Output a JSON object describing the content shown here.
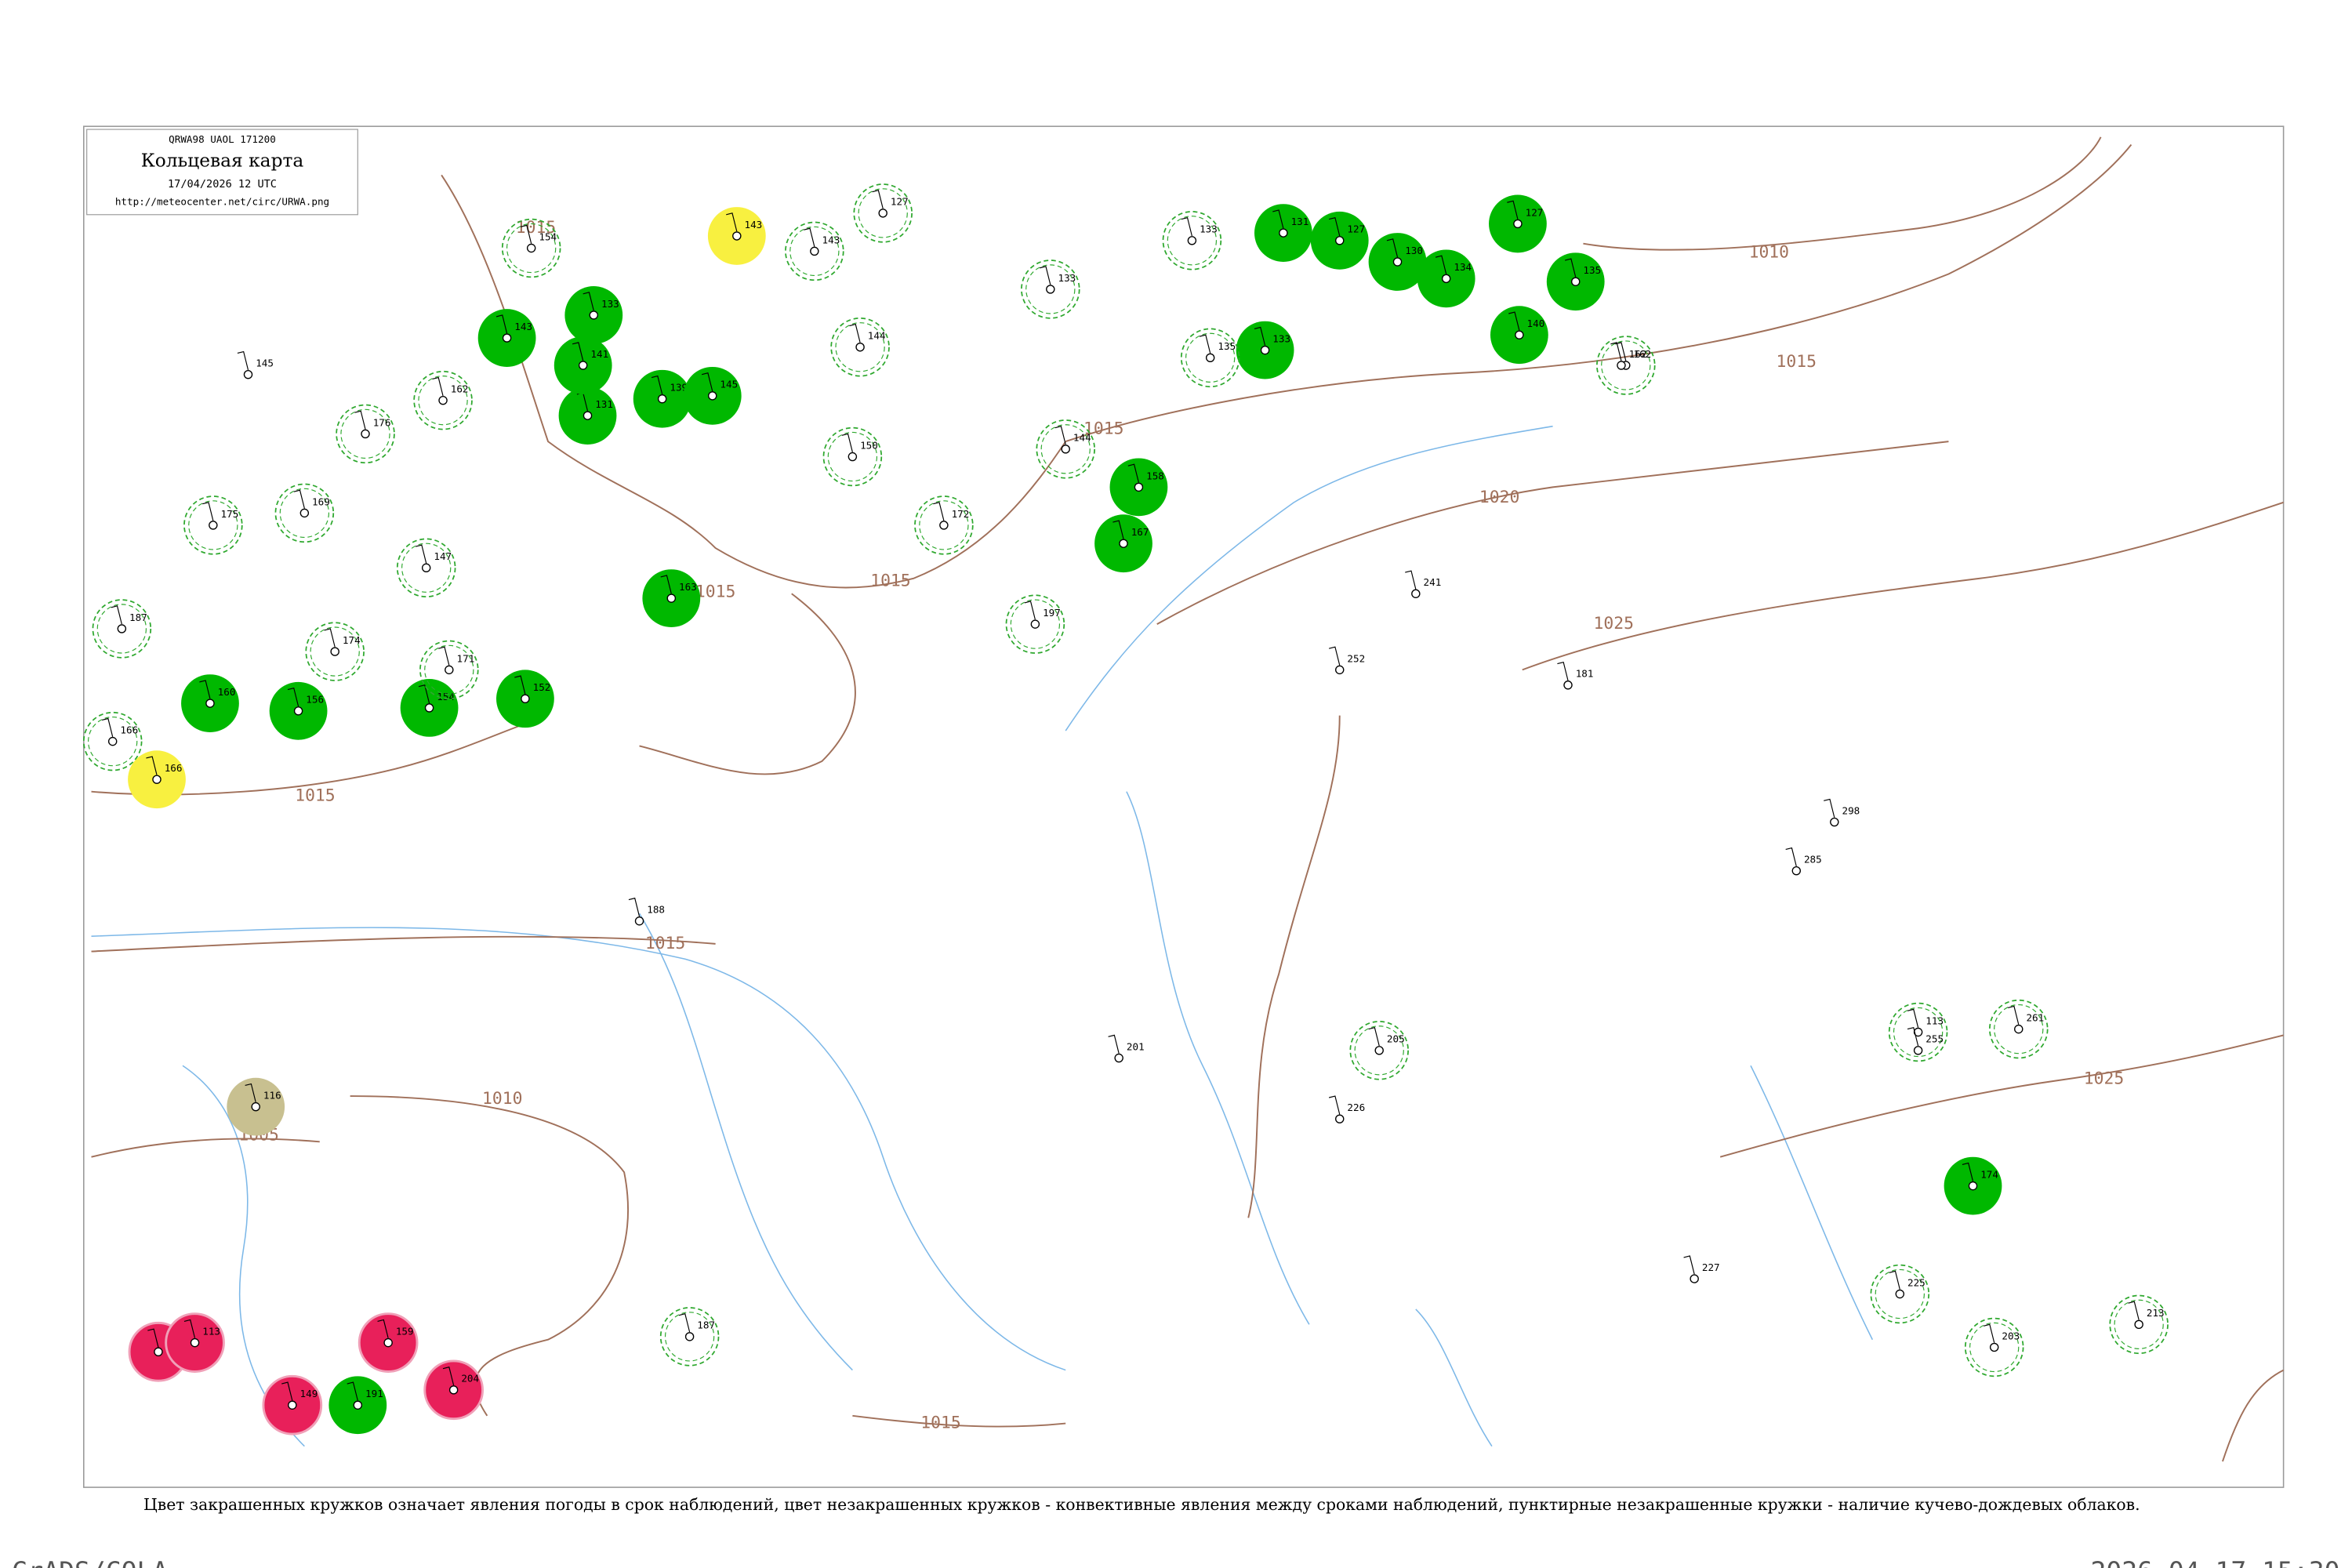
{
  "header": {
    "code": "QRWA98 UAOL 171200",
    "title": "Кольцевая карта",
    "date": "17/04/2026 12 UTC",
    "url": "http://meteocenter.net/circ/URWA.png"
  },
  "isobar_labels": [
    "1015",
    "1010",
    "1015",
    "1020",
    "1025",
    "1015",
    "1015",
    "1015",
    "1015",
    "1010",
    "1005",
    "1025",
    "1015",
    "1015"
  ],
  "stations": [
    {
      "pressure": 143,
      "color": "#00b800",
      "style": "filled"
    },
    {
      "pressure": 133,
      "color": "#00b800",
      "style": "filled"
    },
    {
      "pressure": 131,
      "color": "#00b800",
      "style": "filled"
    },
    {
      "pressure": 141,
      "color": "#00b800",
      "style": "filled"
    },
    {
      "pressure": 139,
      "color": "#00b800",
      "style": "filled"
    },
    {
      "pressure": 145,
      "color": "#00b800",
      "style": "filled"
    },
    {
      "pressure": 163,
      "color": "#00b800",
      "style": "filled"
    },
    {
      "pressure": 152,
      "color": "#00b800",
      "style": "filled"
    },
    {
      "pressure": 154,
      "color": "#00b800",
      "style": "filled"
    },
    {
      "pressure": 156,
      "color": "#00b800",
      "style": "filled"
    },
    {
      "pressure": 160,
      "color": "#00b800",
      "style": "filled"
    },
    {
      "pressure": 131,
      "color": "#00b800",
      "style": "filled"
    },
    {
      "pressure": 127,
      "color": "#00b800",
      "style": "filled"
    },
    {
      "pressure": 130,
      "color": "#00b800",
      "style": "filled"
    },
    {
      "pressure": 134,
      "color": "#00b800",
      "style": "filled"
    },
    {
      "pressure": 127,
      "color": "#00b800",
      "style": "filled"
    },
    {
      "pressure": 140,
      "color": "#00b800",
      "style": "filled"
    },
    {
      "pressure": 135,
      "color": "#00b800",
      "style": "filled"
    },
    {
      "pressure": 133,
      "color": "#00b800",
      "style": "filled"
    },
    {
      "pressure": 158,
      "color": "#00b800",
      "style": "filled"
    },
    {
      "pressure": 167,
      "color": "#00b800",
      "style": "filled"
    },
    {
      "pressure": 174,
      "color": "#00b800",
      "style": "filled"
    },
    {
      "pressure": 191,
      "color": "#00b800",
      "style": "filled"
    },
    {
      "pressure": 135,
      "color": "#e8205a",
      "style": "filled"
    },
    {
      "pressure": 113,
      "color": "#e8205a",
      "style": "filled"
    },
    {
      "pressure": 149,
      "color": "#e8205a",
      "style": "filled"
    },
    {
      "pressure": 159,
      "color": "#e8205a",
      "style": "filled"
    },
    {
      "pressure": 204,
      "color": "#e8205a",
      "style": "filled"
    },
    {
      "pressure": 143,
      "color": "#f8f040",
      "style": "filled"
    },
    {
      "pressure": 166,
      "color": "#f8f040",
      "style": "filled"
    },
    {
      "pressure": 116,
      "color": "#c8c090",
      "style": "filled"
    },
    {
      "pressure": 154,
      "color": "#2ea82e",
      "style": "dashed"
    },
    {
      "pressure": 143,
      "color": "#2ea82e",
      "style": "dashed"
    },
    {
      "pressure": 127,
      "color": "#2ea82e",
      "style": "dashed"
    },
    {
      "pressure": 144,
      "color": "#2ea82e",
      "style": "dashed"
    },
    {
      "pressure": 133,
      "color": "#2ea82e",
      "style": "dashed"
    },
    {
      "pressure": 133,
      "color": "#2ea82e",
      "style": "dashed"
    },
    {
      "pressure": 135,
      "color": "#2ea82e",
      "style": "dashed"
    },
    {
      "pressure": 162,
      "color": "#2ea82e",
      "style": "dashed"
    },
    {
      "pressure": 162,
      "color": "#2ea82e",
      "style": "dashed"
    },
    {
      "pressure": 176,
      "color": "#2ea82e",
      "style": "dashed"
    },
    {
      "pressure": 175,
      "color": "#2ea82e",
      "style": "dashed"
    },
    {
      "pressure": 169,
      "color": "#2ea82e",
      "style": "dashed"
    },
    {
      "pressure": 147,
      "color": "#2ea82e",
      "style": "dashed"
    },
    {
      "pressure": 187,
      "color": "#2ea82e",
      "style": "dashed"
    },
    {
      "pressure": 174,
      "color": "#2ea82e",
      "style": "dashed"
    },
    {
      "pressure": 171,
      "color": "#2ea82e",
      "style": "dashed"
    },
    {
      "pressure": 166,
      "color": "#2ea82e",
      "style": "dashed"
    },
    {
      "pressure": 144,
      "color": "#2ea82e",
      "style": "dashed"
    },
    {
      "pressure": 172,
      "color": "#2ea82e",
      "style": "dashed"
    },
    {
      "pressure": 150,
      "color": "#2ea82e",
      "style": "dashed"
    },
    {
      "pressure": 197,
      "color": "#2ea82e",
      "style": "dashed"
    },
    {
      "pressure": 205,
      "color": "#2ea82e",
      "style": "dashed"
    },
    {
      "pressure": 113,
      "color": "#2ea82e",
      "style": "dashed"
    },
    {
      "pressure": 261,
      "color": "#2ea82e",
      "style": "dashed"
    },
    {
      "pressure": 225,
      "color": "#2ea82e",
      "style": "dashed"
    },
    {
      "pressure": 203,
      "color": "#2ea82e",
      "style": "dashed"
    },
    {
      "pressure": 213,
      "color": "#2ea82e",
      "style": "dashed"
    },
    {
      "pressure": 187,
      "color": "#2ea82e",
      "style": "dashed"
    },
    {
      "pressure": 145,
      "color": "#000000",
      "style": "plain"
    },
    {
      "pressure": 181,
      "color": "#000000",
      "style": "plain"
    },
    {
      "pressure": 252,
      "color": "#000000",
      "style": "plain"
    },
    {
      "pressure": 241,
      "color": "#000000",
      "style": "plain"
    },
    {
      "pressure": 226,
      "color": "#000000",
      "style": "plain"
    },
    {
      "pressure": 255,
      "color": "#000000",
      "style": "plain"
    },
    {
      "pressure": 298,
      "color": "#000000",
      "style": "plain"
    },
    {
      "pressure": 227,
      "color": "#000000",
      "style": "plain"
    },
    {
      "pressure": 188,
      "color": "#000000",
      "style": "plain"
    },
    {
      "pressure": 201,
      "color": "#000000",
      "style": "plain"
    },
    {
      "pressure": 285,
      "color": "#000000",
      "style": "plain"
    },
    {
      "pressure": 162,
      "color": "#000000",
      "style": "plain"
    }
  ],
  "caption": "Цвет закрашенных кружков означает явления погоды в срок наблюдений, цвет незакрашенных кружков - конвективные явления между сроками наблюдений, пунктирные незакрашенные кружки - наличие кучево-дождевых облаков.",
  "footer": {
    "left": "GrADS/COLA",
    "right": "2026-04-17-15:30"
  }
}
